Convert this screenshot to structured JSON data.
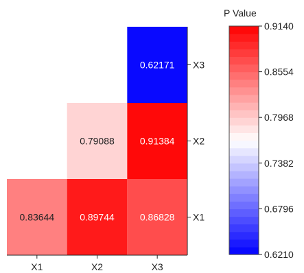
{
  "chart_data": {
    "type": "heatmap",
    "x_categories": [
      "X1",
      "X2",
      "X3"
    ],
    "y_categories": [
      "X1",
      "X2",
      "X3"
    ],
    "cells": [
      {
        "x": "X1",
        "y": "X1",
        "value": 0.83644,
        "label": "0.83644"
      },
      {
        "x": "X2",
        "y": "X1",
        "value": 0.89744,
        "label": "0.89744"
      },
      {
        "x": "X3",
        "y": "X1",
        "value": 0.86828,
        "label": "0.86828"
      },
      {
        "x": "X2",
        "y": "X2",
        "value": 0.79088,
        "label": "0.79088"
      },
      {
        "x": "X3",
        "y": "X2",
        "value": 0.91384,
        "label": "0.91384"
      },
      {
        "x": "X3",
        "y": "X3",
        "value": 0.62171,
        "label": "0.62171"
      }
    ],
    "colorbar": {
      "title": "P Value",
      "min": 0.621,
      "max": 0.914,
      "tick_labels": [
        "0.9140",
        "0.8554",
        "0.7968",
        "0.7382",
        "0.6796",
        "0.6210"
      ],
      "tick_values": [
        0.914,
        0.8554,
        0.7968,
        0.7382,
        0.6796,
        0.621
      ],
      "levels": 30,
      "colormap": [
        "#0000ff",
        "#ffffff",
        "#ff0000"
      ]
    }
  }
}
